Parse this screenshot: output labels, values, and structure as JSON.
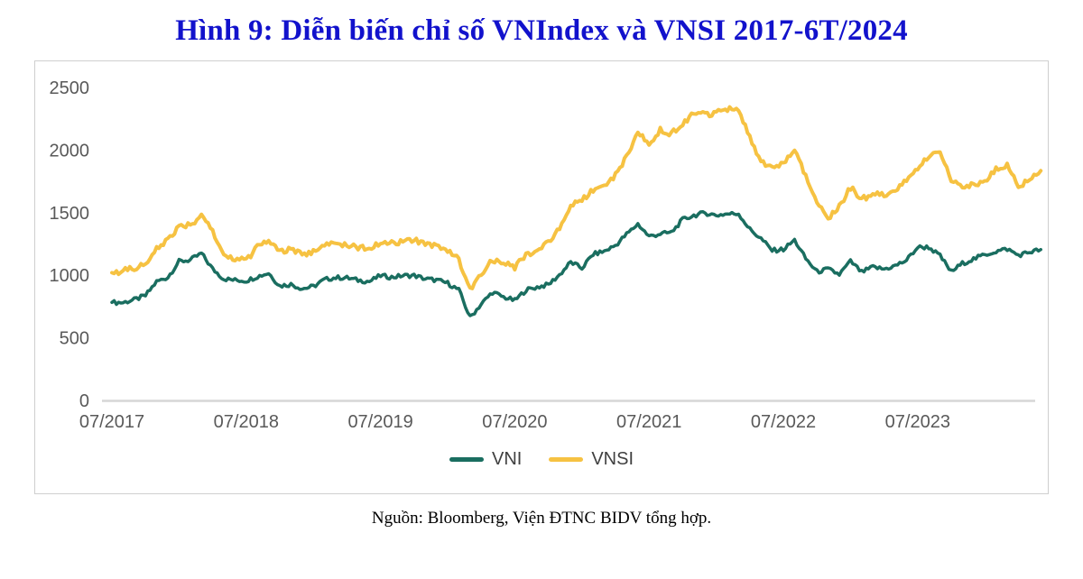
{
  "page": {
    "title": "Hình 9: Diễn biến chỉ số VNIndex và VNSI 2017-6T/2024",
    "source_note": "Nguồn: Bloomberg, Viện ĐTNC BIDV tổng hợp."
  },
  "chart_data": {
    "type": "line",
    "title": "Diễn biến chỉ số VNIndex và VNSI 2017-6T/2024",
    "xlabel": "",
    "ylabel": "",
    "ylim": [
      0,
      2500
    ],
    "y_ticks": [
      0,
      500,
      1000,
      1500,
      2000,
      2500
    ],
    "x_tick_labels": [
      "07/2017",
      "07/2018",
      "07/2019",
      "07/2020",
      "07/2021",
      "07/2022",
      "07/2023"
    ],
    "x_tick_month_indices": [
      0,
      12,
      24,
      36,
      48,
      60,
      72
    ],
    "x_start_month": "07/2017",
    "x_end_month": "06/2024",
    "grid": false,
    "legend_position": "bottom",
    "colors": {
      "axis_line": "#d6d6d6",
      "tick_label": "#595959"
    },
    "series": [
      {
        "name": "VNI",
        "color": "#1a6e60",
        "values": [
          783,
          782,
          804,
          837,
          949,
          984,
          1110,
          1121,
          1174,
          1050,
          971,
          961,
          956,
          990,
          1017,
          915,
          927,
          893,
          910,
          965,
          981,
          979,
          960,
          950,
          997,
          984,
          997,
          998,
          971,
          961,
          937,
          882,
          663,
          769,
          864,
          825,
          798,
          882,
          905,
          925,
          1003,
          1104,
          1057,
          1168,
          1191,
          1239,
          1328,
          1409,
          1310,
          1331,
          1342,
          1444,
          1478,
          1498,
          1479,
          1490,
          1492,
          1367,
          1293,
          1198,
          1206,
          1280,
          1132,
          1028,
          1048,
          1007,
          1111,
          1024,
          1065,
          1049,
          1075,
          1120,
          1223,
          1224,
          1154,
          1028,
          1094,
          1130,
          1164,
          1190,
          1210,
          1160,
          1185,
          1205
        ]
      },
      {
        "name": "VNSI",
        "color": "#f6c242",
        "values": [
          1020,
          1035,
          1060,
          1090,
          1210,
          1290,
          1380,
          1400,
          1475,
          1350,
          1155,
          1130,
          1115,
          1230,
          1280,
          1180,
          1215,
          1160,
          1190,
          1240,
          1255,
          1240,
          1225,
          1215,
          1250,
          1255,
          1270,
          1280,
          1250,
          1235,
          1205,
          1130,
          880,
          1000,
          1120,
          1100,
          1065,
          1160,
          1205,
          1260,
          1385,
          1560,
          1600,
          1685,
          1720,
          1800,
          1950,
          2150,
          2050,
          2160,
          2130,
          2210,
          2300,
          2280,
          2300,
          2330,
          2320,
          2100,
          1900,
          1855,
          1905,
          2000,
          1800,
          1600,
          1455,
          1550,
          1700,
          1605,
          1655,
          1645,
          1680,
          1750,
          1850,
          1950,
          2000,
          1755,
          1700,
          1725,
          1755,
          1850,
          1880,
          1700,
          1780,
          1835
        ]
      }
    ]
  }
}
